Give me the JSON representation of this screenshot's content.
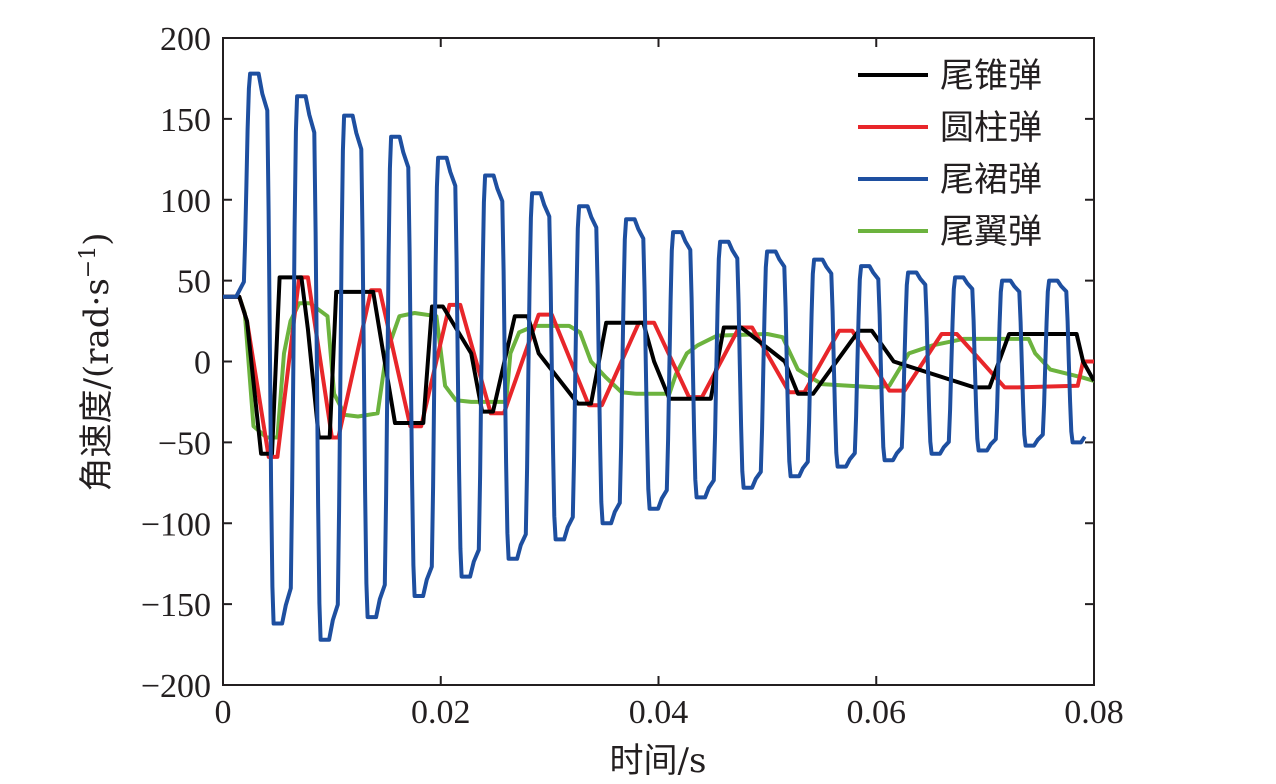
{
  "chart_data": {
    "type": "line",
    "xlabel": "时间/s",
    "ylabel_main": "角速度/(rad",
    "ylabel_mid": "·",
    "ylabel_unit": "s",
    "ylabel_exp": "−1",
    "ylabel_close": ")",
    "xlim": [
      0,
      0.08
    ],
    "ylim": [
      -200,
      200
    ],
    "x_ticks": [
      0,
      0.02,
      0.04,
      0.06,
      0.08
    ],
    "x_tick_labels": [
      "0",
      "0.02",
      "0.04",
      "0.06",
      "0.08"
    ],
    "y_ticks": [
      200,
      150,
      100,
      50,
      0,
      -50,
      -100,
      -150,
      -200
    ],
    "y_tick_labels": [
      "200",
      "150",
      "100",
      "50",
      "0",
      "−50",
      "−100",
      "−150",
      "−200"
    ],
    "grid": false,
    "legend_position": "top-right",
    "series": [
      {
        "name": "尾锥弹",
        "color": "#000000",
        "x": [
          0,
          0.0015,
          0.0022,
          0.0035,
          0.0045,
          0.0052,
          0.0072,
          0.0078,
          0.0088,
          0.0098,
          0.0104,
          0.0138,
          0.0146,
          0.0158,
          0.0184,
          0.0192,
          0.0202,
          0.0228,
          0.0238,
          0.0248,
          0.0268,
          0.028,
          0.029,
          0.0326,
          0.0338,
          0.0352,
          0.0386,
          0.0396,
          0.041,
          0.0448,
          0.046,
          0.0476,
          0.0516,
          0.0528,
          0.0542,
          0.0584,
          0.0596,
          0.0616,
          0.069,
          0.0704,
          0.0722,
          0.0784,
          0.079,
          0.08
        ],
        "y": [
          40,
          40,
          25,
          -57,
          -57,
          52,
          52,
          20,
          -47,
          -47,
          43,
          43,
          10,
          -38,
          -38,
          34,
          34,
          5,
          -31,
          -31,
          28,
          28,
          5,
          -26,
          -26,
          24,
          24,
          0,
          -23,
          -23,
          21,
          21,
          0,
          -20,
          -20,
          19,
          19,
          0,
          -16,
          -16,
          17,
          17,
          0,
          -12
        ]
      },
      {
        "name": "圆柱弹",
        "color": "#e8262a",
        "x": [
          0,
          0.0015,
          0.0022,
          0.0042,
          0.005,
          0.007,
          0.0078,
          0.01,
          0.0106,
          0.0136,
          0.0144,
          0.0172,
          0.0182,
          0.0208,
          0.0218,
          0.0246,
          0.0258,
          0.029,
          0.0302,
          0.0336,
          0.0348,
          0.0382,
          0.0396,
          0.0428,
          0.044,
          0.0474,
          0.0486,
          0.052,
          0.0534,
          0.0566,
          0.0578,
          0.0612,
          0.0626,
          0.066,
          0.0674,
          0.0718,
          0.073,
          0.0785,
          0.079,
          0.08
        ],
        "y": [
          40,
          40,
          25,
          -59,
          -59,
          52,
          52,
          -47,
          -47,
          44,
          44,
          -40,
          -40,
          35,
          35,
          -32,
          -32,
          29,
          29,
          -27,
          -27,
          24,
          24,
          -22,
          -22,
          21,
          21,
          -19,
          -19,
          19,
          19,
          -18,
          -18,
          17,
          17,
          -16,
          -16,
          -15,
          0,
          0
        ]
      },
      {
        "name": "尾裙弹",
        "color": "#1e4fa0",
        "amplitudes": [
          178,
          -162,
          164,
          -172,
          152,
          -158,
          139,
          -145,
          126,
          -133,
          115,
          -122,
          104,
          -110,
          96,
          -100,
          88,
          -91,
          80,
          -84,
          74,
          -78,
          68,
          -71,
          63,
          -65,
          59,
          -61,
          55,
          -57,
          52,
          -55,
          50,
          -52,
          50,
          -50
        ],
        "x_end": 0.0795
      },
      {
        "name": "尾翼弹",
        "color": "#6cb33e",
        "x": [
          0,
          0.0015,
          0.002,
          0.0028,
          0.004,
          0.005,
          0.0056,
          0.0062,
          0.007,
          0.008,
          0.0096,
          0.0102,
          0.0112,
          0.0124,
          0.0142,
          0.015,
          0.0162,
          0.0176,
          0.0196,
          0.0204,
          0.0214,
          0.0228,
          0.026,
          0.0264,
          0.0272,
          0.0286,
          0.0318,
          0.0328,
          0.0338,
          0.0352,
          0.0366,
          0.038,
          0.041,
          0.0416,
          0.0426,
          0.0436,
          0.0454,
          0.05,
          0.0514,
          0.0528,
          0.055,
          0.06,
          0.0612,
          0.063,
          0.0652,
          0.068,
          0.074,
          0.0746,
          0.076,
          0.079,
          0.08
        ],
        "y": [
          40,
          40,
          30,
          -40,
          -47,
          -47,
          5,
          25,
          36,
          36,
          28,
          -20,
          -33,
          -34,
          -32,
          5,
          28,
          30,
          28,
          -15,
          -24,
          -25,
          -25,
          5,
          18,
          22,
          22,
          18,
          0,
          -10,
          -19,
          -20,
          -20,
          -8,
          5,
          10,
          16,
          17,
          15,
          -5,
          -14,
          -16,
          -15,
          5,
          10,
          14,
          14,
          5,
          -5,
          -10,
          -12
        ]
      }
    ]
  }
}
